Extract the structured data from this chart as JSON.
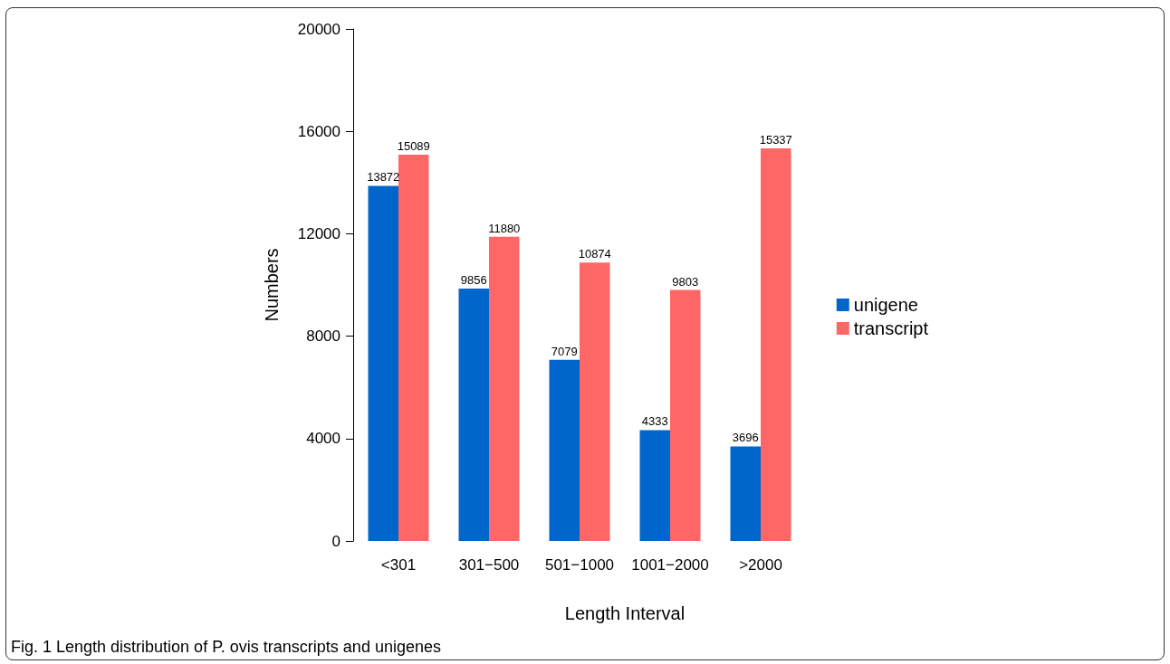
{
  "chart_data": {
    "type": "bar",
    "xlabel": "Length Interval",
    "ylabel": "Numbers",
    "categories": [
      "<301",
      "301−500",
      "501−1000",
      "1001−2000",
      ">2000",
      null
    ],
    "series": [
      {
        "name": "unigene",
        "color": "#0066cc",
        "values": [
          13872,
          9856,
          7079,
          4333,
          3696,
          0
        ],
        "value_labels": [
          "13872",
          "9856",
          "7079",
          "4333",
          "3696",
          null
        ]
      },
      {
        "name": "transcript",
        "color": "#ff6666",
        "values": [
          15089,
          11880,
          10874,
          9803,
          15337,
          0
        ],
        "value_labels": [
          "15089",
          "11880",
          "10874",
          "9803",
          "15337",
          null
        ]
      }
    ],
    "ylim": [
      0,
      20000
    ],
    "yticks": [
      0,
      4000,
      8000,
      12000,
      16000,
      20000
    ],
    "grid": false,
    "legend": "right",
    "annotations": [
      "Fig. 1 Length distribution of P. ovis transcripts and unigenes"
    ]
  }
}
